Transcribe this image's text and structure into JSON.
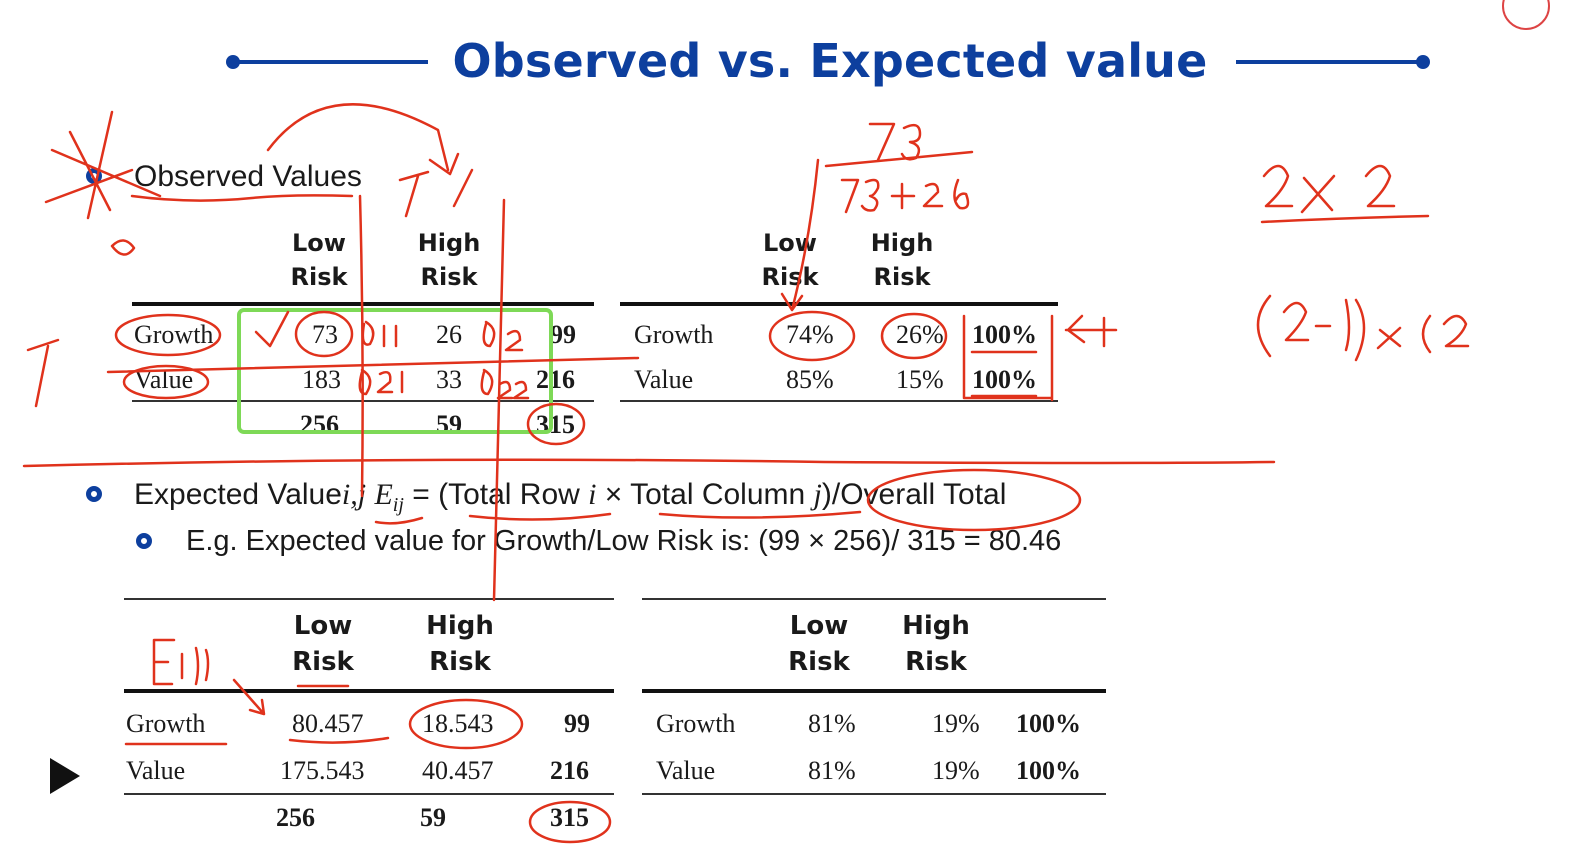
{
  "title": "Observed vs. Expected value",
  "section1": {
    "label": "Observed Values"
  },
  "observed_table": {
    "headers": [
      "Low Risk",
      "High Risk"
    ],
    "rows": [
      {
        "label": "Growth",
        "low": "73",
        "high": "26",
        "total": "99"
      },
      {
        "label": "Value",
        "low": "183",
        "high": "33",
        "total": "216"
      }
    ],
    "totals": {
      "low": "256",
      "high": "59",
      "total": "315"
    }
  },
  "observed_pct_table": {
    "headers": [
      "Low Risk",
      "High Risk"
    ],
    "rows": [
      {
        "label": "Growth",
        "low": "74%",
        "high": "26%",
        "total": "100%"
      },
      {
        "label": "Value",
        "low": "85%",
        "high": "15%",
        "total": "100%"
      }
    ]
  },
  "section2": {
    "label_prefix": "Expected Value",
    "label_ij": "i,j",
    "label_e": "E",
    "label_e_sub": "ij",
    "label_formula_a": " = (Total Row ",
    "label_i": "i",
    "label_formula_b": " × Total Column ",
    "label_j": "j",
    "label_formula_c": ")/Overall Total",
    "example": "E.g. Expected value for Growth/Low Risk is: (99 × 256)/ 315 = 80.46"
  },
  "expected_table": {
    "headers": [
      "Low Risk",
      "High Risk"
    ],
    "rows": [
      {
        "label": "Growth",
        "low": "80.457",
        "high": "18.543",
        "total": "99"
      },
      {
        "label": "Value",
        "low": "175.543",
        "high": "40.457",
        "total": "216"
      }
    ],
    "totals": {
      "low": "256",
      "high": "59",
      "total": "315"
    }
  },
  "expected_pct_table": {
    "headers": [
      "Low Risk",
      "High Risk"
    ],
    "rows": [
      {
        "label": "Growth",
        "low": "81%",
        "high": "19%",
        "total": "100%"
      },
      {
        "label": "Value",
        "low": "81%",
        "high": "19%",
        "total": "100%"
      }
    ]
  },
  "colors": {
    "title_blue": "#0d3f9e",
    "annotation_red": "#e0321c",
    "highlight_green": "#7ed957"
  },
  "icons": {
    "play": "play-icon",
    "logo": "university-logo-icon"
  }
}
